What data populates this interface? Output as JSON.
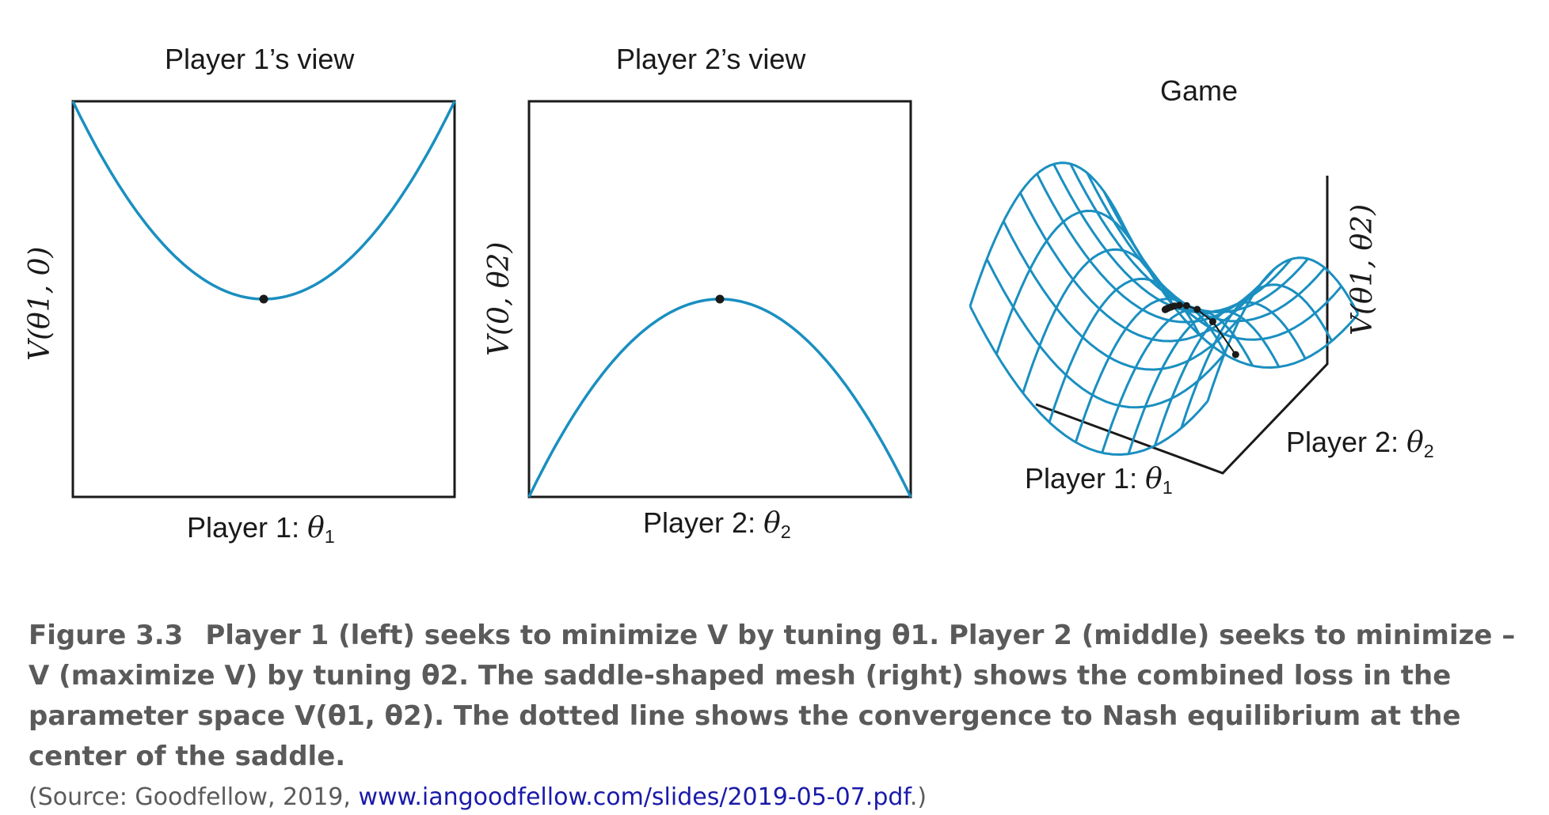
{
  "chart_data": [
    {
      "type": "line",
      "title": "Player 1’s view",
      "xlabel_text": "Player 1: ",
      "xlabel_symbol": "θ",
      "xlabel_sub": "1",
      "ylabel": "V(θ1, 0)",
      "curve": "parabola opening upward",
      "x": [
        -1,
        -0.75,
        -0.5,
        -0.25,
        0,
        0.25,
        0.5,
        0.75,
        1
      ],
      "y": [
        1,
        0.5625,
        0.25,
        0.0625,
        0,
        0.0625,
        0.25,
        0.5625,
        1
      ],
      "marked_point": {
        "x": 0,
        "y": 0
      },
      "color": "#1a8fc0"
    },
    {
      "type": "line",
      "title": "Player 2’s view",
      "xlabel_text": "Player 2: ",
      "xlabel_symbol": "θ",
      "xlabel_sub": "2",
      "ylabel": "V(0, θ2)",
      "curve": "parabola opening downward",
      "x": [
        -1,
        -0.75,
        -0.5,
        -0.25,
        0,
        0.25,
        0.5,
        0.75,
        1
      ],
      "y": [
        -1,
        -0.5625,
        -0.25,
        -0.0625,
        0,
        -0.0625,
        -0.25,
        -0.5625,
        -1
      ],
      "marked_point": {
        "x": 0,
        "y": 0
      },
      "color": "#1a8fc0"
    },
    {
      "type": "surface",
      "title": "Game",
      "xlabel_text": "Player 1: ",
      "xlabel_symbol": "θ",
      "xlabel_sub": "1",
      "ylabel_text": "Player 2: ",
      "ylabel_symbol": "θ",
      "ylabel_sub": "2",
      "zlabel": "V(θ1, θ2)",
      "surface": "saddle mesh",
      "convergence_path": "dotted line converging to saddle center",
      "color": "#1a8fc0"
    }
  ],
  "caption": {
    "label": "Figure 3.3",
    "text": "Player 1 (left) seeks to minimize V by tuning θ1. Player 2 (middle) seeks to minimize –V (maximize V) by tuning θ2. The saddle-shaped mesh (right) shows the combined loss in the parameter space V(θ1, θ2). The dotted line shows the convergence to Nash equilibrium at the center of the saddle.",
    "source_prefix": "(Source: Goodfellow, 2019, ",
    "source_link": "www.iangoodfellow.com/slides/2019-05-07.pdf",
    "source_suffix": ".)"
  }
}
